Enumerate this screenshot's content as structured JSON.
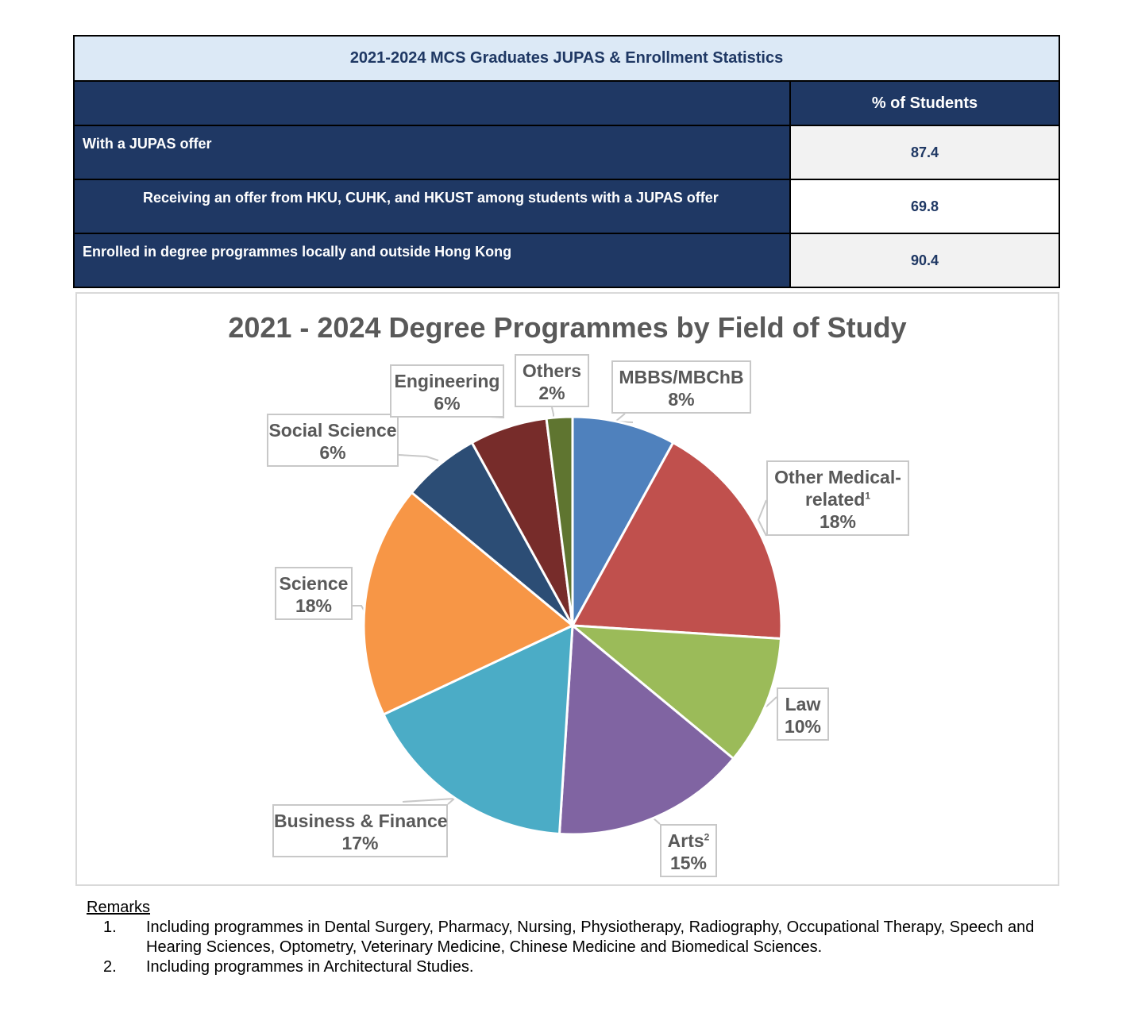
{
  "table": {
    "title": "2021-2024 MCS Graduates JUPAS & Enrollment Statistics",
    "column_header": "% of Students",
    "rows": [
      {
        "label": "With a JUPAS offer",
        "value": "87.4"
      },
      {
        "label": "Receiving an offer from HKU, CUHK, and HKUST among students with a JUPAS offer",
        "value": "69.8"
      },
      {
        "label": "Enrolled in degree programmes locally and outside Hong Kong",
        "value": "90.4"
      }
    ]
  },
  "chart_data": {
    "type": "pie",
    "title": "2021 - 2024 Degree Programmes by Field of Study",
    "start_angle_deg": 0,
    "direction": "clockwise",
    "legend": "none",
    "slices": [
      {
        "name": "MBBS/MBChB",
        "value": 8,
        "label": "8%",
        "sup": "",
        "color": "#4f81bd"
      },
      {
        "name": "Other Medical-related",
        "value": 18,
        "label": "18%",
        "sup": "1",
        "color": "#c0504d"
      },
      {
        "name": "Law",
        "value": 10,
        "label": "10%",
        "sup": "",
        "color": "#9bbb59"
      },
      {
        "name": "Arts",
        "value": 15,
        "label": "15%",
        "sup": "2",
        "color": "#8064a2"
      },
      {
        "name": "Business & Finance",
        "value": 17,
        "label": "17%",
        "sup": "",
        "color": "#4bacc6"
      },
      {
        "name": "Science",
        "value": 18,
        "label": "18%",
        "sup": "",
        "color": "#f79646"
      },
      {
        "name": "Social Science",
        "value": 6,
        "label": "6%",
        "sup": "",
        "color": "#2c4d75"
      },
      {
        "name": "Engineering",
        "value": 6,
        "label": "6%",
        "sup": "",
        "color": "#772c2a"
      },
      {
        "name": "Others",
        "value": 2,
        "label": "2%",
        "sup": "",
        "color": "#5f7530"
      }
    ],
    "label_lines": [
      {
        "line1": "MBBS/MBChB",
        "sup": "",
        "line2": "",
        "pct": "8%"
      },
      {
        "line1": "Other Medical-",
        "sup": "1",
        "line2": "related",
        "pct": "18%"
      },
      {
        "line1": "Law",
        "sup": "",
        "line2": "",
        "pct": "10%"
      },
      {
        "line1": "Arts",
        "sup": "2",
        "line2": "",
        "pct": "15%"
      },
      {
        "line1": "Business & Finance",
        "sup": "",
        "line2": "",
        "pct": "17%"
      },
      {
        "line1": "Science",
        "sup": "",
        "line2": "",
        "pct": "18%"
      },
      {
        "line1": "Social Science",
        "sup": "",
        "line2": "",
        "pct": "6%"
      },
      {
        "line1": "Engineering",
        "sup": "",
        "line2": "",
        "pct": "6%"
      },
      {
        "line1": "Others",
        "sup": "",
        "line2": "",
        "pct": "2%"
      }
    ]
  },
  "remarks": {
    "title": "Remarks",
    "items": [
      {
        "num": "1.",
        "text": "Including programmes in Dental Surgery, Pharmacy, Nursing, Physiotherapy, Radiography, Occupational Therapy, Speech and Hearing Sciences, Optometry, Veterinary Medicine, Chinese Medicine and Biomedical Sciences."
      },
      {
        "num": "2.",
        "text": "Including programmes in Architectural Studies."
      }
    ]
  }
}
